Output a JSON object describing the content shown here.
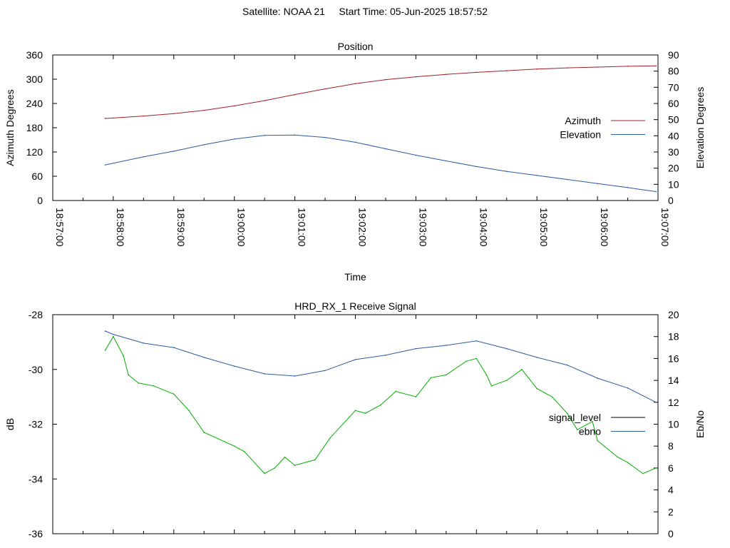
{
  "header": {
    "satellite": "Satellite: NOAA 21",
    "start_time": "Start Time: 05-Jun-2025 18:57:52"
  },
  "chart_data": [
    {
      "id": "position",
      "type": "line",
      "title": "Position",
      "xlabel": "Time",
      "ylabel": "Azimuth Degrees",
      "y2label": "Elevation Degrees",
      "x_ticks": [
        "18:57:00",
        "18:58:00",
        "18:59:00",
        "19:00:00",
        "19:01:00",
        "19:02:00",
        "19:03:00",
        "19:04:00",
        "19:05:00",
        "19:06:00",
        "19:07:00"
      ],
      "ylim": [
        0,
        360
      ],
      "y_ticks": [
        0,
        60,
        120,
        180,
        240,
        300,
        360
      ],
      "y2lim": [
        0,
        90
      ],
      "y2_ticks": [
        0,
        10,
        20,
        30,
        40,
        50,
        60,
        70,
        80,
        90
      ],
      "legend_position": "right",
      "series": [
        {
          "name": "Azimuth",
          "axis": "y",
          "color": "#a0202a",
          "x": [
            "18:57:52",
            "18:58:00",
            "18:58:30",
            "18:59:00",
            "18:59:30",
            "19:00:00",
            "19:00:30",
            "19:01:00",
            "19:01:30",
            "19:02:00",
            "19:02:30",
            "19:03:00",
            "19:03:30",
            "19:04:00",
            "19:04:30",
            "19:05:00",
            "19:05:30",
            "19:06:00",
            "19:06:30",
            "19:06:58"
          ],
          "values": [
            203,
            204,
            209,
            215,
            223,
            234,
            247,
            262,
            276,
            289,
            299,
            306,
            312,
            317,
            321,
            325,
            328,
            330,
            332,
            333
          ]
        },
        {
          "name": "Elevation",
          "axis": "y2",
          "color": "#2c5aa0",
          "x": [
            "18:57:52",
            "18:58:30",
            "18:59:00",
            "18:59:30",
            "19:00:00",
            "19:00:30",
            "19:01:00",
            "19:01:30",
            "19:02:00",
            "19:02:30",
            "19:03:00",
            "19:03:30",
            "19:04:00",
            "19:04:30",
            "19:05:00",
            "19:05:30",
            "19:06:00",
            "19:06:30",
            "19:06:58"
          ],
          "values": [
            22,
            27,
            30.5,
            34.5,
            38,
            40.3,
            40.5,
            39,
            36,
            32,
            28,
            24.5,
            21,
            18,
            15.5,
            13,
            10.5,
            8,
            5.5
          ]
        }
      ]
    },
    {
      "id": "receive-signal",
      "type": "line",
      "title": "HRD_RX_1 Receive Signal",
      "ylabel": "dB",
      "y2label": "Eb/No",
      "ylim": [
        -36,
        -28
      ],
      "y_ticks": [
        -36,
        -34,
        -32,
        -30,
        -28
      ],
      "y2lim": [
        0,
        20
      ],
      "y2_ticks": [
        0,
        2,
        4,
        6,
        8,
        10,
        12,
        14,
        16,
        18,
        20
      ],
      "legend_position": "right",
      "series": [
        {
          "name": "signal_level",
          "axis": "y",
          "color": "#000000",
          "x": [
            "18:57:52",
            "18:58:00",
            "18:58:10",
            "18:58:15",
            "18:58:25",
            "18:58:40",
            "18:59:00",
            "18:59:15",
            "18:59:30",
            "19:00:00",
            "19:00:10",
            "19:00:30",
            "19:00:40",
            "19:00:50",
            "19:01:00",
            "19:01:20",
            "19:01:35",
            "19:02:00",
            "19:02:10",
            "19:02:25",
            "19:02:40",
            "19:03:00",
            "19:03:15",
            "19:03:30",
            "19:03:50",
            "19:04:00",
            "19:04:10",
            "19:04:15",
            "19:04:30",
            "19:04:45",
            "19:05:00",
            "19:05:15",
            "19:05:30",
            "19:05:40",
            "19:05:55",
            "19:06:00",
            "19:06:20",
            "19:06:30",
            "19:06:45",
            "19:06:58"
          ],
          "values": [
            -29.3,
            -28.8,
            -29.5,
            -30.2,
            -30.5,
            -30.6,
            -30.9,
            -31.5,
            -32.3,
            -32.8,
            -33.0,
            -33.8,
            -33.6,
            -33.2,
            -33.5,
            -33.3,
            -32.5,
            -31.5,
            -31.6,
            -31.3,
            -30.8,
            -31.0,
            -30.3,
            -30.2,
            -29.7,
            -29.6,
            -30.2,
            -30.6,
            -30.4,
            -30.0,
            -30.7,
            -31.0,
            -31.6,
            -32.2,
            -31.9,
            -32.6,
            -33.2,
            -33.4,
            -33.8,
            -33.6
          ]
        },
        {
          "name": "ebno",
          "axis": "y2",
          "color": "#2c5aa0",
          "x": [
            "18:57:52",
            "18:58:00",
            "18:58:30",
            "18:59:00",
            "18:59:30",
            "19:00:00",
            "19:00:30",
            "19:01:00",
            "19:01:30",
            "19:02:00",
            "19:02:30",
            "19:03:00",
            "19:03:30",
            "19:04:00",
            "19:04:30",
            "19:05:00",
            "19:05:30",
            "19:06:00",
            "19:06:30",
            "19:06:58"
          ],
          "values": [
            18.5,
            18.2,
            17.4,
            17.0,
            16.1,
            15.3,
            14.6,
            14.4,
            14.9,
            15.9,
            16.3,
            16.9,
            17.2,
            17.6,
            16.9,
            16.1,
            15.4,
            14.2,
            13.3,
            12.0
          ]
        }
      ]
    }
  ]
}
